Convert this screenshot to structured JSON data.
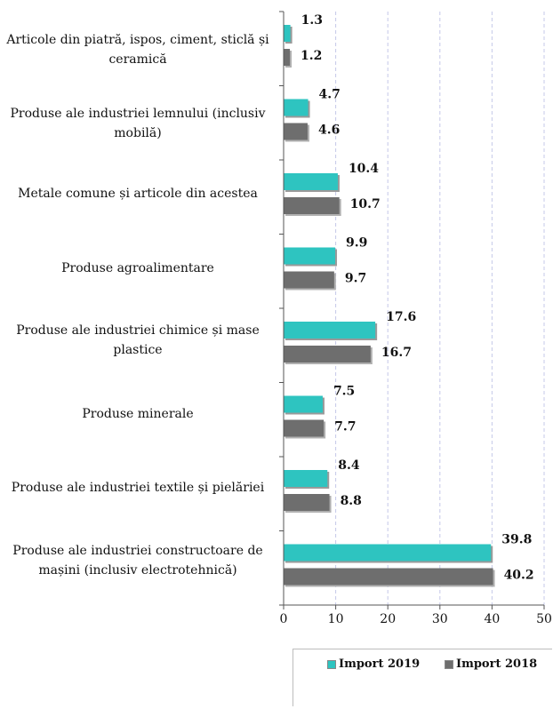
{
  "chart_data": {
    "type": "bar",
    "orientation": "horizontal",
    "title": "",
    "xlabel": "",
    "ylabel": "",
    "xlim": [
      0,
      50
    ],
    "x_ticks": [
      0,
      10,
      20,
      30,
      40,
      50
    ],
    "grid": "vertical dashed",
    "legend_position": "bottom-right",
    "categories": [
      "Articole din piatră, ispos, ciment, sticlă și ceramică",
      "Produse ale industriei lemnului (inclusiv mobilă)",
      "Metale comune și articole din acestea",
      "Produse agroalimentare",
      "Produse ale industriei chimice și mase plastice",
      "Produse minerale",
      "Produse ale industriei textile și pielăriei",
      "Produse ale industriei constructoare de mașini (inclusiv electrotehnică)"
    ],
    "series": [
      {
        "name": "Import 2019",
        "color": "#2ec4c0",
        "values": [
          1.3,
          4.7,
          10.4,
          9.9,
          17.6,
          7.5,
          8.4,
          39.8
        ]
      },
      {
        "name": "Import 2018",
        "color": "#6e6e6e",
        "values": [
          1.2,
          4.6,
          10.7,
          9.7,
          16.7,
          7.7,
          8.8,
          40.2
        ]
      }
    ],
    "data_labels": [
      [
        "1.3",
        "4.7",
        "10.4",
        "9.9",
        "17.6",
        "7.5",
        "8.4",
        "39.8"
      ],
      [
        "1.2",
        "4.6",
        "10.7",
        "9.7",
        "16.7",
        "7.7",
        "8.8",
        "40.2"
      ]
    ]
  },
  "labels": {
    "cat0_line1": "Articole din piatră, ispos, ciment, sticlă și",
    "cat0_line2": "ceramică",
    "cat1_line1": "Produse ale industriei lemnului (inclusiv",
    "cat1_line2": "mobilă)",
    "cat2_line1": "Metale comune și articole din acestea",
    "cat3_line1": "Produse agroalimentare",
    "cat4_line1": "Produse ale industriei chimice și mase",
    "cat4_line2": "plastice",
    "cat5_line1": "Produse minerale",
    "cat6_line1": "Produse ale industriei textile și pielăriei",
    "cat7_line1": "Produse ale industriei constructoare de",
    "cat7_line2": "mașini (inclusiv electrotehnică)"
  },
  "legend": {
    "item1": "Import 2019",
    "item2": "Import 2018"
  }
}
